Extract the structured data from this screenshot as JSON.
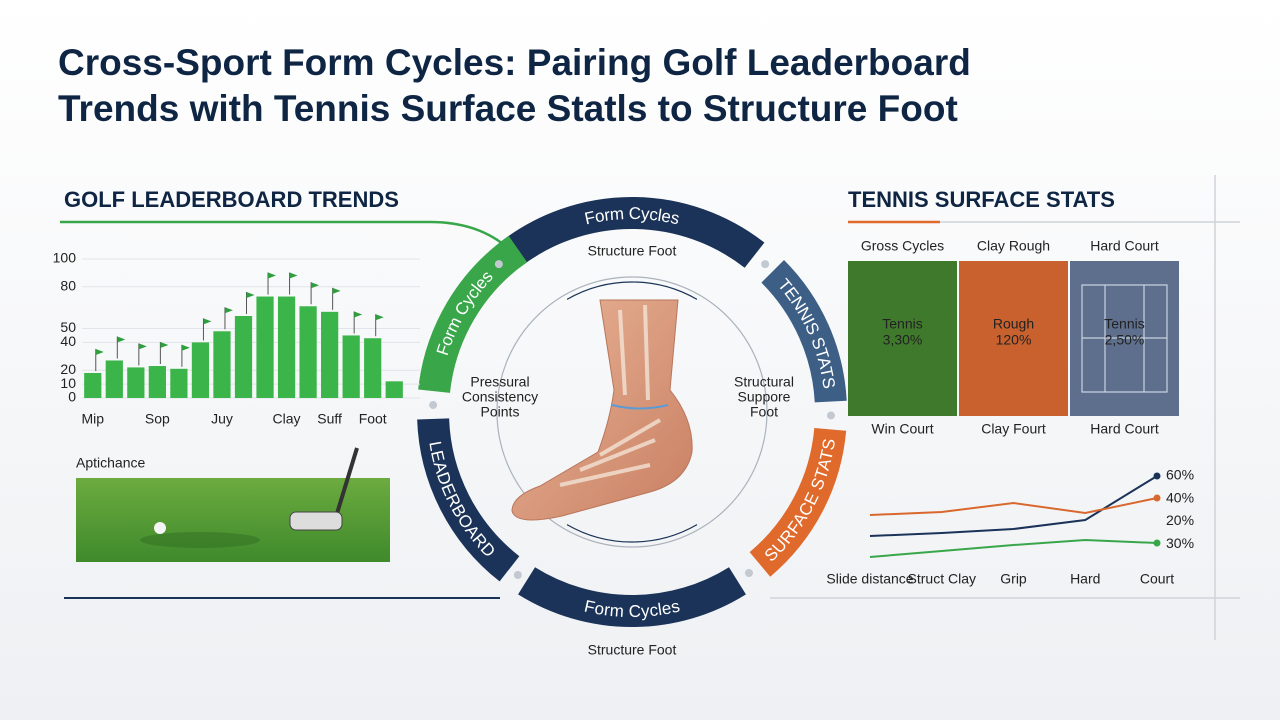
{
  "title_lines": [
    "Cross-Sport Form Cycles: Pairing Golf Leaderboard",
    "Trends with Tennis Surface Statls to Structure Foot"
  ],
  "golf": {
    "heading": "GOLF LEADERBOARD TRENDS",
    "photo_label": "Aptichance"
  },
  "tennis": {
    "heading": "TENNIS SURFACE STATS",
    "surfaces": [
      {
        "top": "Gross Cycles",
        "name": "Tennis",
        "stat": "3,30%",
        "bottom": "Win Court",
        "color": "#3f7a2c"
      },
      {
        "top": "Clay Rough",
        "name": "Rough",
        "stat": "120%",
        "bottom": "Clay Fourt",
        "color": "#c8612e"
      },
      {
        "top": "Hard Court",
        "name": "Tennis",
        "stat": "2,50%",
        "bottom": "Hard Court",
        "color": "#5d6f8c"
      }
    ]
  },
  "cycle": {
    "top": "Form Cycles",
    "right_upper": "TENNIS STATS",
    "right_lower": "SURFACE STATS",
    "bottom": "Form Cycles",
    "left_lower": "LEADERBOARD",
    "left_upper": "Form Cycles",
    "label_top": "Structure Foot",
    "label_bottom": "Structure Foot"
  },
  "foot": {
    "left": [
      "Pressural",
      "Consistency",
      "Points"
    ],
    "right": [
      "Structural",
      "Suppore",
      "Foot"
    ]
  },
  "chart_data": [
    {
      "type": "bar",
      "categories": [
        "Mip",
        null,
        null,
        "Sop",
        null,
        null,
        "Juy",
        null,
        null,
        "Clay",
        null,
        "Suff",
        null,
        "Foot",
        null
      ],
      "values": [
        18,
        27,
        22,
        23,
        21,
        40,
        48,
        59,
        73,
        73,
        66,
        62,
        45,
        43,
        12
      ],
      "color": "#3bb54a",
      "ylim": [
        0,
        100
      ],
      "yticks": [
        0,
        10,
        20,
        40,
        50,
        80,
        100
      ],
      "grid": true
    },
    {
      "type": "line",
      "categories": [
        "Slide distance",
        "Struct Clay",
        "Grip",
        "Hard",
        "Court"
      ],
      "ylim": [
        0,
        100
      ],
      "series": [
        {
          "color": "#1b3358",
          "values": [
            34,
            37,
            41,
            50,
            94
          ]
        },
        {
          "color": "#d8682e",
          "values": [
            55,
            58,
            67,
            57,
            72
          ]
        },
        {
          "color": "#3aa64a",
          "values": [
            13,
            19,
            25,
            30,
            27
          ]
        }
      ],
      "end_labels": [
        "60%",
        "40%",
        "20%",
        "30%"
      ]
    }
  ]
}
